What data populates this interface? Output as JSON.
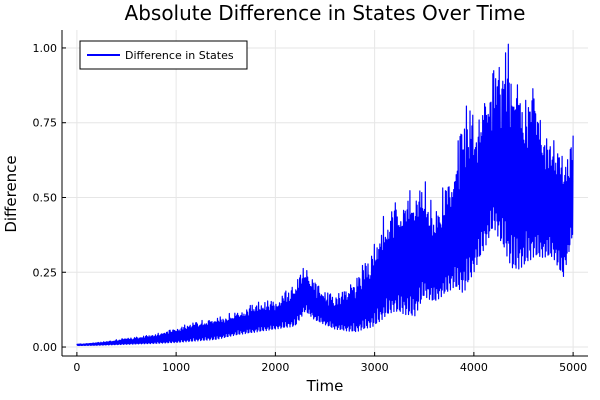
{
  "chart_data": {
    "type": "line",
    "title": "Absolute Difference in States Over Time",
    "xlabel": "Time",
    "ylabel": "Difference",
    "xlim": [
      -150,
      5150
    ],
    "ylim": [
      -0.03,
      1.06
    ],
    "xticks": [
      0,
      1000,
      2000,
      3000,
      4000,
      5000
    ],
    "xtick_labels": [
      "0",
      "1000",
      "2000",
      "3000",
      "4000",
      "5000"
    ],
    "yticks": [
      0,
      0.25,
      0.5,
      0.75,
      1.0
    ],
    "ytick_labels": [
      "0.00",
      "0.25",
      "0.50",
      "0.75",
      "1.00"
    ],
    "grid": true,
    "legend_position": "top-left",
    "series": [
      {
        "name": "Difference in States",
        "color": "#0000ff",
        "envelope": {
          "x": [
            0,
            200,
            400,
            600,
            800,
            1000,
            1200,
            1400,
            1600,
            1800,
            2000,
            2200,
            2300,
            2400,
            2600,
            2800,
            3000,
            3100,
            3200,
            3400,
            3500,
            3600,
            3800,
            3900,
            4000,
            4200,
            4300,
            4400,
            4500,
            4600,
            4700,
            4800,
            4900,
            5000
          ],
          "upper": [
            0.01,
            0.015,
            0.025,
            0.035,
            0.045,
            0.065,
            0.09,
            0.1,
            0.12,
            0.15,
            0.16,
            0.22,
            0.28,
            0.22,
            0.17,
            0.23,
            0.35,
            0.45,
            0.5,
            0.55,
            0.58,
            0.45,
            0.65,
            0.85,
            0.8,
            0.95,
            1.0,
            1.03,
            0.85,
            0.95,
            0.72,
            0.75,
            0.68,
            0.72
          ],
          "lower": [
            0.005,
            0.006,
            0.008,
            0.01,
            0.012,
            0.015,
            0.02,
            0.025,
            0.04,
            0.05,
            0.06,
            0.07,
            0.12,
            0.09,
            0.06,
            0.05,
            0.07,
            0.1,
            0.12,
            0.1,
            0.17,
            0.15,
            0.2,
            0.18,
            0.25,
            0.4,
            0.33,
            0.25,
            0.27,
            0.3,
            0.3,
            0.3,
            0.23,
            0.38
          ]
        }
      }
    ]
  }
}
